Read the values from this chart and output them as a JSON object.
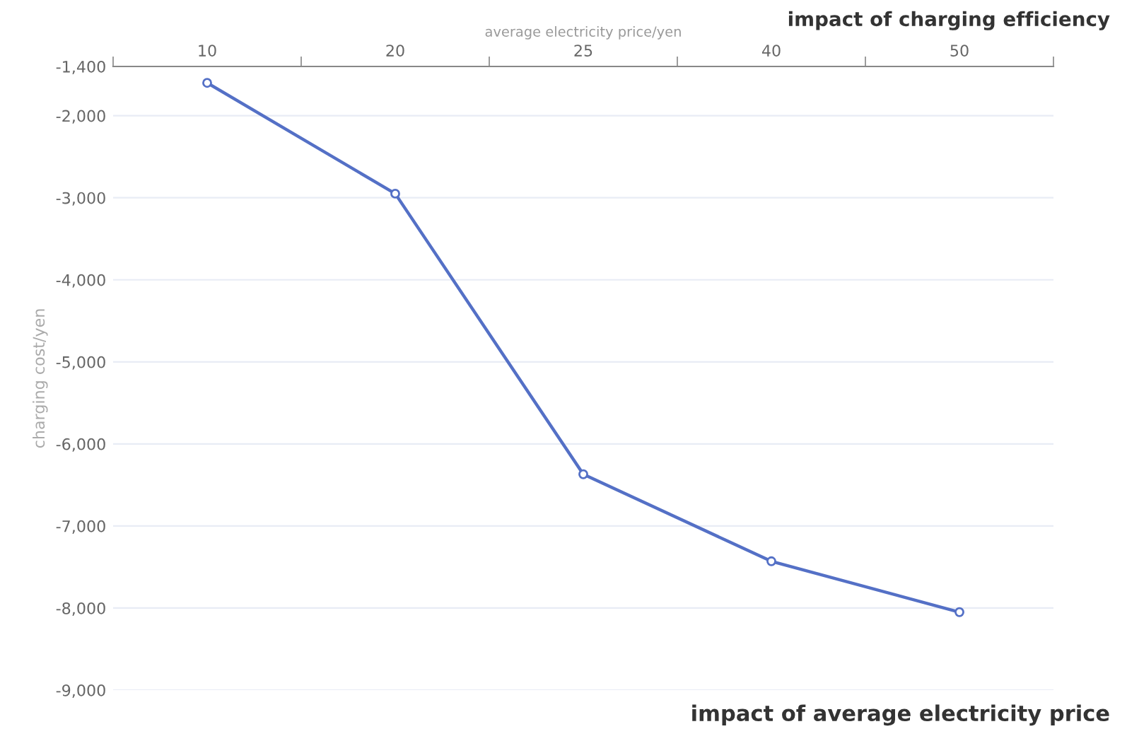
{
  "chart_data": {
    "type": "line",
    "title": "impact of average electricity price",
    "annotations": [
      "impact of charging efficiency"
    ],
    "xlabel": "average electricity price/yen",
    "ylabel": "charging cost/yen",
    "categories": [
      "10",
      "20",
      "25",
      "40",
      "50"
    ],
    "series": [
      {
        "color": "#5470c6",
        "values": [
          -1600,
          -2950,
          -6370,
          -7430,
          -8050
        ]
      }
    ],
    "ylim": [
      -9000,
      -1400
    ],
    "yticks": [
      {
        "value": -1400,
        "label": "-1,400"
      },
      {
        "value": -2000,
        "label": "-2,000"
      },
      {
        "value": -3000,
        "label": "-3,000"
      },
      {
        "value": -4000,
        "label": "-4,000"
      },
      {
        "value": -5000,
        "label": "-5,000"
      },
      {
        "value": -6000,
        "label": "-6,000"
      },
      {
        "value": -7000,
        "label": "-7,000"
      },
      {
        "value": -8000,
        "label": "-8,000"
      },
      {
        "value": -9000,
        "label": "-9,000"
      }
    ],
    "grid": "y",
    "legend": false,
    "marker": "circle",
    "line_style": "solid"
  }
}
